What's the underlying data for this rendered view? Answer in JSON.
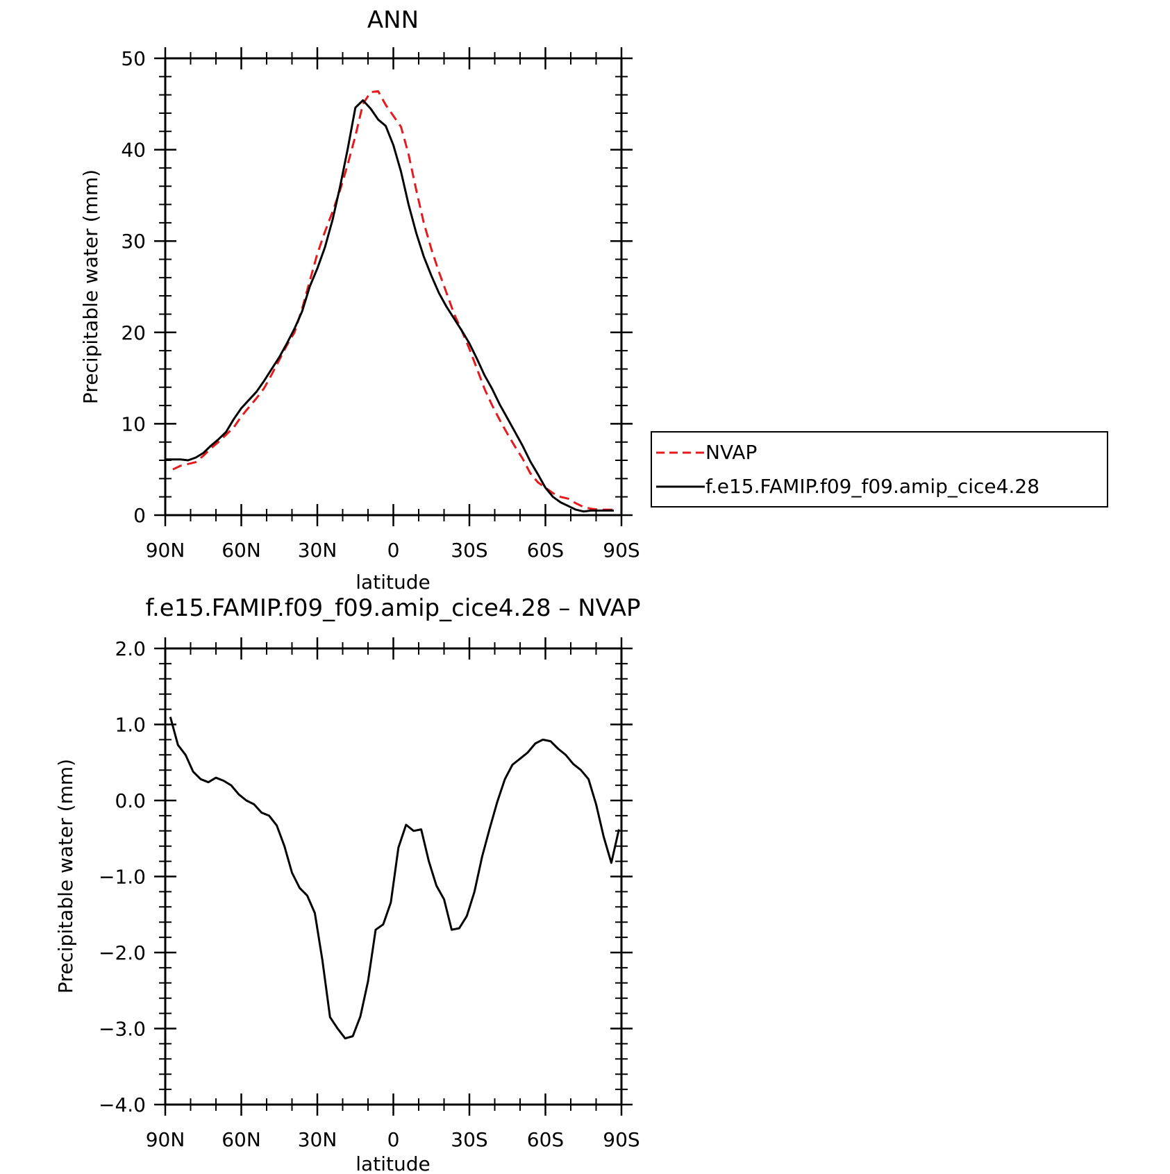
{
  "chart_data": [
    {
      "type": "line",
      "title": "ANN",
      "xlabel": "latitude",
      "ylabel": "Precipitable water (mm)",
      "xlim": [
        90,
        -90
      ],
      "ylim": [
        0,
        50
      ],
      "x_tick_values": [
        90,
        60,
        30,
        0,
        -30,
        -60,
        -90
      ],
      "x_tick_labels": [
        "90N",
        "60N",
        "30N",
        "0",
        "30S",
        "60S",
        "90S"
      ],
      "y_tick_values": [
        0,
        10,
        20,
        30,
        40,
        50
      ],
      "y_tick_labels": [
        "0",
        "10",
        "20",
        "30",
        "40",
        "50"
      ],
      "legend_position": "right",
      "series": [
        {
          "name": "NVAP",
          "color": "#e41a1c",
          "dash": "dashed",
          "x": [
            87,
            84,
            81,
            78,
            75,
            72,
            69,
            66,
            63,
            60,
            57,
            54,
            51,
            48,
            45,
            42,
            39,
            36,
            33,
            30,
            27,
            24,
            21,
            18,
            15,
            12,
            9,
            6,
            3,
            0,
            -3,
            -6,
            -9,
            -12,
            -15,
            -18,
            -21,
            -24,
            -27,
            -30,
            -33,
            -36,
            -39,
            -42,
            -45,
            -48,
            -51,
            -54,
            -57,
            -60,
            -63,
            -66,
            -69,
            -72,
            -75,
            -78,
            -81,
            -84,
            -87
          ],
          "y": [
            5.0,
            5.4,
            5.6,
            5.8,
            6.5,
            7.3,
            8.0,
            8.8,
            9.6,
            10.8,
            11.8,
            12.8,
            13.9,
            15.4,
            17.0,
            18.6,
            20.0,
            22.6,
            25.6,
            28.6,
            31.0,
            33.2,
            35.6,
            38.4,
            41.5,
            45.0,
            46.3,
            46.4,
            44.9,
            43.7,
            42.5,
            39.5,
            35.6,
            32.0,
            29.1,
            26.6,
            24.3,
            22.0,
            20.2,
            18.2,
            16.0,
            13.8,
            12.0,
            10.4,
            8.9,
            7.5,
            6.2,
            4.6,
            3.6,
            3.0,
            2.4,
            2.0,
            1.8,
            1.3,
            0.9,
            0.7,
            0.6,
            0.6,
            0.6
          ]
        },
        {
          "name": "f.e15.FAMIP.f09_f09.amip_cice4.28",
          "color": "#000000",
          "dash": "solid",
          "x": [
            90,
            87,
            84,
            81,
            78,
            75,
            72,
            69,
            66,
            63,
            60,
            57,
            54,
            51,
            48,
            45,
            42,
            39,
            36,
            33,
            30,
            27,
            24,
            21,
            18,
            15,
            12,
            9,
            6,
            3,
            0,
            -3,
            -6,
            -9,
            -12,
            -15,
            -18,
            -21,
            -24,
            -27,
            -30,
            -33,
            -36,
            -39,
            -42,
            -45,
            -48,
            -51,
            -54,
            -57,
            -60,
            -63,
            -66,
            -69,
            -72,
            -75,
            -78,
            -81,
            -84,
            -87
          ],
          "y": [
            6.1,
            6.1,
            6.1,
            6.0,
            6.3,
            6.8,
            7.6,
            8.3,
            9.1,
            10.5,
            11.7,
            12.6,
            13.5,
            14.7,
            16.0,
            17.3,
            18.8,
            20.4,
            22.3,
            25.0,
            27.0,
            29.3,
            32.3,
            36.0,
            40.1,
            44.6,
            45.4,
            44.5,
            43.3,
            42.6,
            40.5,
            37.6,
            34.0,
            30.9,
            28.3,
            26.2,
            24.3,
            22.8,
            21.5,
            20.2,
            18.8,
            17.1,
            15.3,
            13.8,
            12.1,
            10.6,
            9.1,
            7.6,
            5.9,
            4.5,
            3.0,
            2.0,
            1.4,
            1.0,
            0.6,
            0.4,
            0.5,
            0.5,
            0.5,
            0.5
          ]
        }
      ]
    },
    {
      "type": "line",
      "title": "f.e15.FAMIP.f09_f09.amip_cice4.28 – NVAP",
      "xlabel": "latitude",
      "ylabel": "Precipitable water (mm)",
      "xlim": [
        90,
        -90
      ],
      "ylim": [
        -4.0,
        2.0
      ],
      "x_tick_values": [
        90,
        60,
        30,
        0,
        -30,
        -60,
        -90
      ],
      "x_tick_labels": [
        "90N",
        "60N",
        "30N",
        "0",
        "30S",
        "60S",
        "90S"
      ],
      "y_tick_values": [
        2.0,
        1.0,
        0.0,
        -1.0,
        -2.0,
        -3.0,
        -4.0
      ],
      "y_tick_labels": [
        "2.0",
        "1.0",
        "0.0",
        "−1.0",
        "−2.0",
        "−3.0",
        "−4.0"
      ],
      "series": [
        {
          "color": "#000000",
          "dash": "solid",
          "x": [
            88,
            85,
            82,
            79,
            76,
            73,
            70,
            67,
            64,
            61,
            58,
            55,
            52,
            49,
            46,
            43,
            40,
            37,
            34,
            31,
            28,
            25,
            22,
            19,
            16,
            13,
            10,
            7,
            4,
            1,
            -2,
            -5,
            -8,
            -11,
            -14,
            -17,
            -20,
            -23,
            -26,
            -29,
            -32,
            -35,
            -38,
            -41,
            -44,
            -47,
            -50,
            -53,
            -56,
            -59,
            -62,
            -65,
            -68,
            -71,
            -74,
            -77,
            -80,
            -83,
            -86,
            -89
          ],
          "y": [
            1.1,
            0.73,
            0.6,
            0.38,
            0.28,
            0.24,
            0.3,
            0.26,
            0.2,
            0.08,
            0.0,
            -0.05,
            -0.16,
            -0.2,
            -0.33,
            -0.6,
            -0.95,
            -1.15,
            -1.25,
            -1.48,
            -2.1,
            -2.85,
            -3.0,
            -3.13,
            -3.1,
            -2.84,
            -2.38,
            -1.7,
            -1.63,
            -1.34,
            -0.62,
            -0.32,
            -0.4,
            -0.38,
            -0.8,
            -1.12,
            -1.3,
            -1.7,
            -1.68,
            -1.52,
            -1.2,
            -0.74,
            -0.37,
            -0.02,
            0.28,
            0.47,
            0.55,
            0.63,
            0.75,
            0.8,
            0.78,
            0.68,
            0.6,
            0.48,
            0.4,
            0.28,
            -0.05,
            -0.48,
            -0.82,
            -0.38
          ]
        }
      ]
    }
  ]
}
